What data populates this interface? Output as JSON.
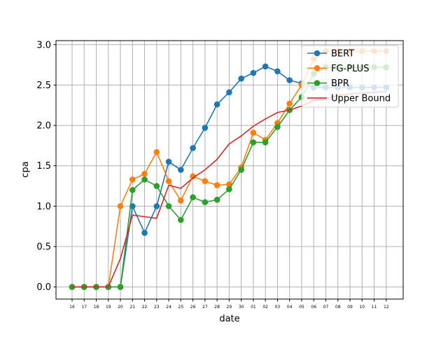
{
  "chart_data": {
    "type": "line",
    "title": "",
    "xlabel": "date",
    "ylabel": "cpa",
    "ylim": [
      -0.15,
      3.05
    ],
    "yticks": [
      "0.0",
      "0.5",
      "1.0",
      "1.5",
      "2.0",
      "2.5",
      "3.0"
    ],
    "grid": true,
    "legend_position": "top-right",
    "categories": [
      "16",
      "17",
      "18",
      "19",
      "20",
      "21",
      "22",
      "23",
      "24",
      "25",
      "26",
      "27",
      "28",
      "29",
      "30",
      "01",
      "02",
      "03",
      "04",
      "05",
      "06",
      "07",
      "08",
      "09",
      "10",
      "11",
      "12"
    ],
    "series": [
      {
        "name": "BERT",
        "color": "#1f77b4",
        "marker": true,
        "values": [
          0,
          0,
          0,
          0,
          0,
          1.0,
          0.67,
          1.0,
          1.55,
          1.45,
          1.72,
          1.97,
          2.26,
          2.41,
          2.58,
          2.65,
          2.73,
          2.67,
          2.56,
          2.52,
          2.47,
          2.47,
          2.47,
          2.47,
          2.47,
          2.47,
          2.47
        ]
      },
      {
        "name": "FG-PLUS",
        "color": "#ff7f0e",
        "marker": true,
        "values": [
          0,
          0,
          0,
          0,
          1.0,
          1.33,
          1.4,
          1.67,
          1.31,
          1.07,
          1.37,
          1.31,
          1.26,
          1.27,
          1.48,
          1.91,
          1.82,
          2.03,
          2.27,
          2.5,
          2.82,
          2.92,
          2.92,
          2.92,
          2.92,
          2.92,
          2.92
        ]
      },
      {
        "name": "BPR",
        "color": "#2ca02c",
        "marker": true,
        "values": [
          0,
          0,
          0,
          0,
          0,
          1.2,
          1.33,
          1.25,
          1.0,
          0.83,
          1.11,
          1.05,
          1.08,
          1.21,
          1.45,
          1.79,
          1.79,
          1.98,
          2.19,
          2.35,
          2.64,
          2.72,
          2.72,
          2.72,
          2.72,
          2.72,
          2.72
        ]
      },
      {
        "name": "Upper Bound",
        "color": "#d62728",
        "marker": false,
        "values": [
          0,
          0,
          0,
          0,
          0.35,
          0.89,
          0.87,
          0.85,
          1.26,
          1.22,
          1.35,
          1.45,
          1.58,
          1.77,
          1.87,
          1.99,
          2.08,
          2.16,
          2.19,
          2.24,
          2.31,
          2.33,
          2.37,
          2.39,
          2.4,
          2.41,
          2.42
        ]
      }
    ]
  }
}
